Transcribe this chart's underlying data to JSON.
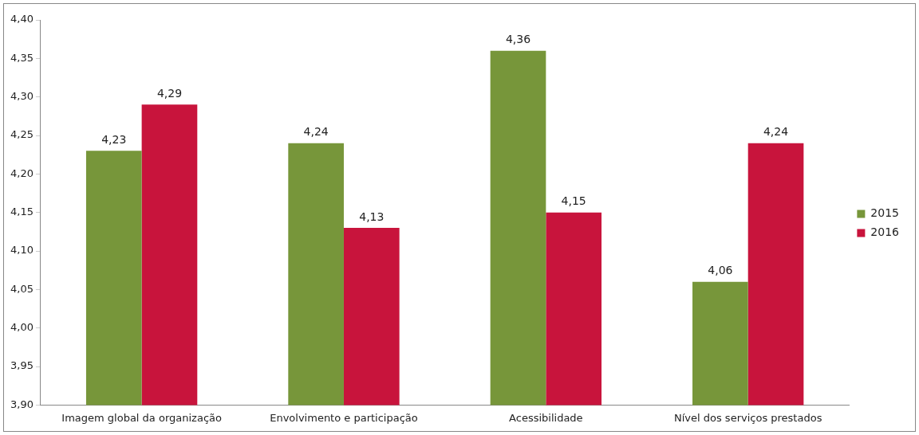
{
  "chart_data": {
    "type": "bar",
    "categories": [
      "Imagem global da organização",
      "Envolvimento e participação",
      "Acessibilidade",
      "Nível dos serviços prestados"
    ],
    "series": [
      {
        "name": "2015",
        "color": "#77963a",
        "values": [
          4.23,
          4.24,
          4.36,
          4.06
        ],
        "value_labels": [
          "4,23",
          "4,24",
          "4,36",
          "4,06"
        ]
      },
      {
        "name": "2016",
        "color": "#c8143c",
        "values": [
          4.29,
          4.13,
          4.15,
          4.24
        ],
        "value_labels": [
          "4,29",
          "4,13",
          "4,15",
          "4,24"
        ]
      }
    ],
    "ylim": [
      3.9,
      4.4
    ],
    "yticks": [
      {
        "value": 3.9,
        "label": "3,90"
      },
      {
        "value": 3.95,
        "label": "3,95"
      },
      {
        "value": 4.0,
        "label": "4,00"
      },
      {
        "value": 4.05,
        "label": "4,05"
      },
      {
        "value": 4.1,
        "label": "4,10"
      },
      {
        "value": 4.15,
        "label": "4,15"
      },
      {
        "value": 4.2,
        "label": "4,20"
      },
      {
        "value": 4.25,
        "label": "4,25"
      },
      {
        "value": 4.3,
        "label": "4,30"
      },
      {
        "value": 4.35,
        "label": "4,35"
      },
      {
        "value": 4.4,
        "label": "4,40"
      }
    ],
    "grid": false,
    "legend": "right"
  }
}
